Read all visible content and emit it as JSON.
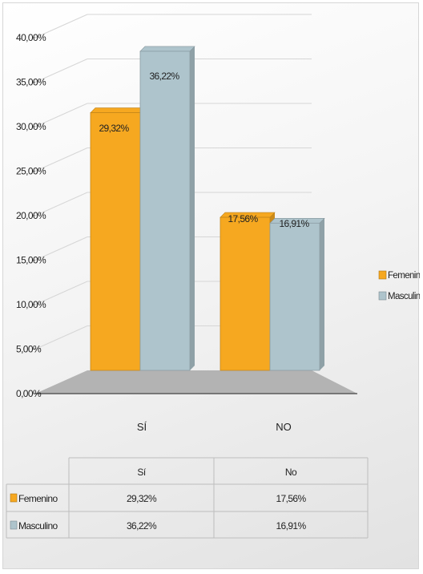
{
  "chart_data": {
    "type": "bar",
    "categories": [
      "SÍ",
      "NO"
    ],
    "series": [
      {
        "name": "Femenino",
        "values": [
          29.32,
          17.56
        ],
        "labels": [
          "29,32%",
          "17,56%"
        ],
        "color": "#f6a820"
      },
      {
        "name": "Masculino",
        "values": [
          36.22,
          16.91
        ],
        "labels": [
          "36,22%",
          "16,91%"
        ],
        "color": "#aec4cc"
      }
    ],
    "y_ticks": [
      "0,00%",
      "5,00%",
      "10,00%",
      "15,00%",
      "20,00%",
      "25,00%",
      "30,00%",
      "35,00%",
      "40,00%"
    ],
    "ylim": [
      0,
      40
    ],
    "grid": true,
    "legend_position": "right",
    "three_d": true,
    "data_table": {
      "headers": [
        "Sí",
        "No"
      ],
      "rows": [
        {
          "name": "Femenino",
          "values": [
            "29,32%",
            "17,56%"
          ]
        },
        {
          "name": "Masculino",
          "values": [
            "36,22%",
            "16,91%"
          ]
        }
      ]
    }
  },
  "colors": {
    "femenino": "#f6a820",
    "masculino": "#aec4cc",
    "floor": "#b3b3b3",
    "grid": "#d6d6d6"
  }
}
